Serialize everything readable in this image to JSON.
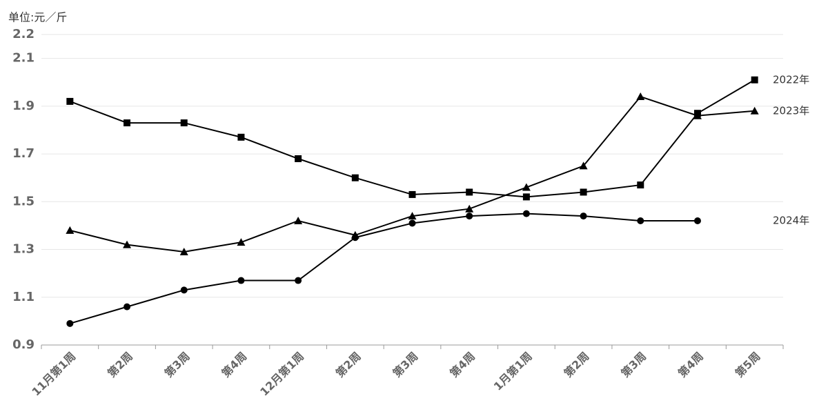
{
  "chart_data": {
    "type": "line",
    "y_label": "单位:元／斤",
    "categories": [
      "11月第1周",
      "第2周",
      "第3周",
      "第4周",
      "12月第1周",
      "第2周",
      "第3周",
      "第4周",
      "1月第1周",
      "第2周",
      "第3周",
      "第4周",
      "第5周"
    ],
    "series": [
      {
        "name": "2022年",
        "color": "#000000",
        "marker": "square",
        "values": [
          1.92,
          1.83,
          1.83,
          1.77,
          1.68,
          1.6,
          1.53,
          1.54,
          1.52,
          1.54,
          1.57,
          1.87,
          2.01
        ]
      },
      {
        "name": "2023年",
        "color": "#000000",
        "marker": "triangle",
        "values": [
          1.38,
          1.32,
          1.29,
          1.33,
          1.42,
          1.36,
          1.44,
          1.47,
          1.56,
          1.65,
          1.94,
          1.86,
          1.88
        ]
      },
      {
        "name": "2024年",
        "color": "#000000",
        "marker": "circle",
        "values": [
          0.99,
          1.06,
          1.13,
          1.17,
          1.17,
          1.35,
          1.41,
          1.44,
          1.45,
          1.44,
          1.42,
          1.42,
          null
        ]
      }
    ],
    "ylim": [
      0.9,
      2.2
    ],
    "yticks": [
      0.9,
      1.1,
      1.3,
      1.5,
      1.7,
      1.9,
      2.1,
      2.2
    ],
    "grid": true
  }
}
